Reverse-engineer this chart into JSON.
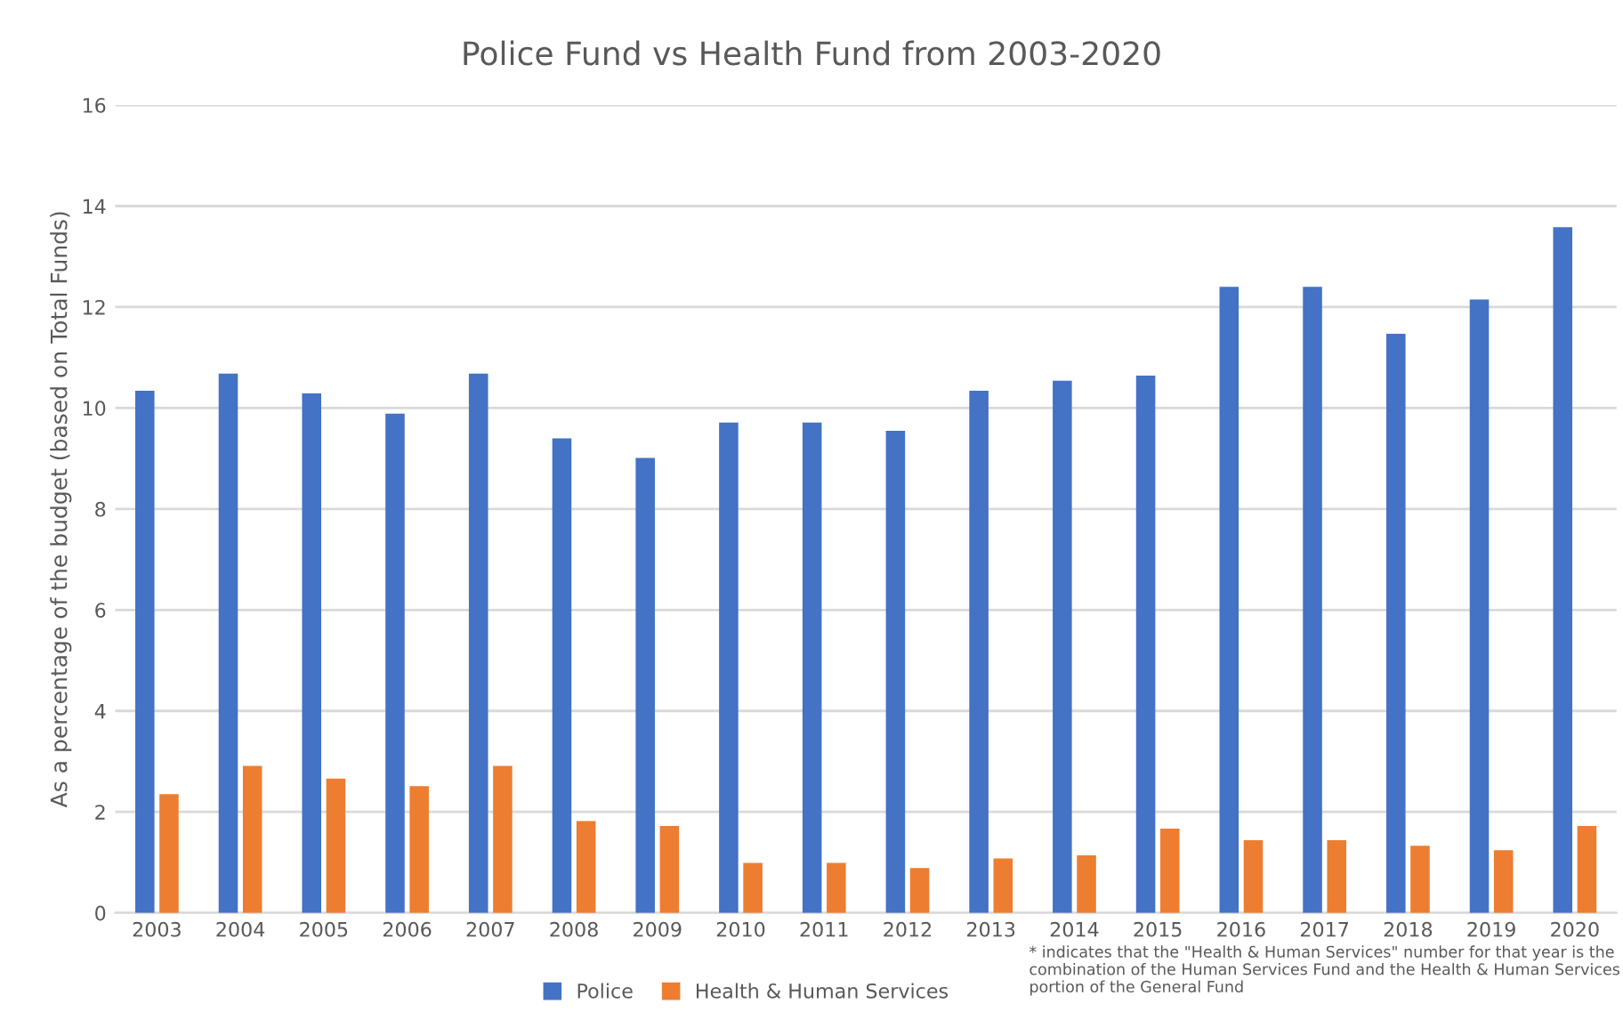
{
  "chart_data": {
    "type": "bar",
    "title": "Police Fund vs Health Fund from 2003-2020",
    "ylabel": "As a percentage of the budget (based on Total Funds)",
    "categories": [
      "2003",
      "2004",
      "2005",
      "2006",
      "2007",
      "2008",
      "2009",
      "2010",
      "2011",
      "2012",
      "2013",
      "2014",
      "2015",
      "2016",
      "2017",
      "2018",
      "2019",
      "2020"
    ],
    "series": [
      {
        "name": "Police",
        "color": "#4472c4",
        "values": [
          10.34,
          10.68,
          10.29,
          9.89,
          10.68,
          9.4,
          9.01,
          9.71,
          9.71,
          9.55,
          10.34,
          10.54,
          10.64,
          12.4,
          12.4,
          11.47,
          12.15,
          13.58
        ]
      },
      {
        "name": "Health & Human Services",
        "color": "#ed7d31",
        "values": [
          2.35,
          2.91,
          2.66,
          2.51,
          2.91,
          1.82,
          1.72,
          0.99,
          0.99,
          0.89,
          1.08,
          1.14,
          1.67,
          1.44,
          1.44,
          1.33,
          1.24,
          1.72
        ]
      }
    ],
    "ylim": [
      0,
      16
    ],
    "yticks": [
      0,
      2,
      4,
      6,
      8,
      10,
      12,
      14,
      16
    ],
    "grid": "y",
    "legend": "bottom",
    "annotations": [
      "* indicates that the \"Health & Human Services\" number for that year is the combination of the Human Services Fund and the Health & Human Services portion of the General Fund"
    ]
  }
}
